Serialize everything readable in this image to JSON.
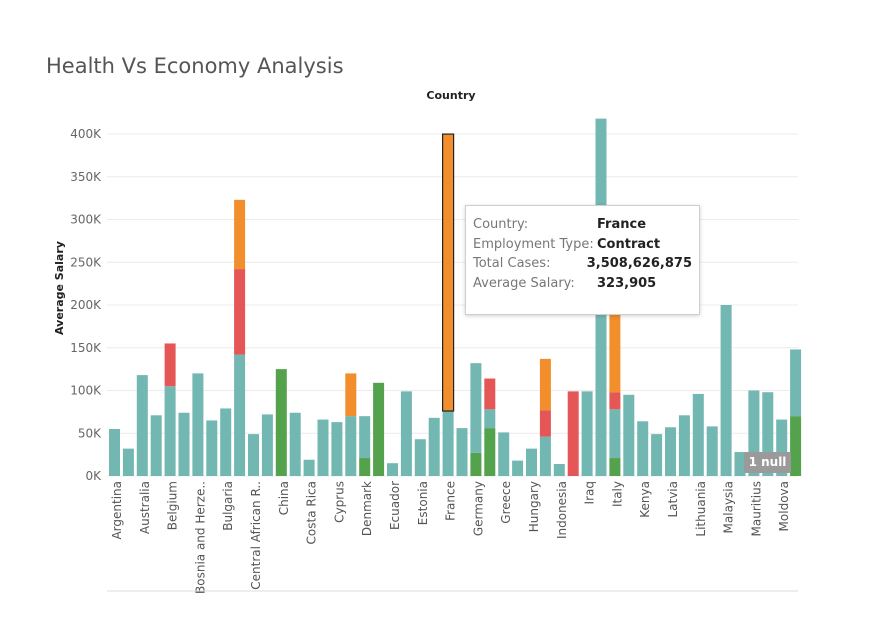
{
  "title": "Health Vs Economy Analysis",
  "colors": {
    "Full-time": "#72b7b2",
    "Part-time": "#e45756",
    "Contract": "#f28e2b",
    "Freelance": "#54a24b",
    "highlight_stroke": "#222222",
    "grid": "#ececec",
    "axis": "#dddddd"
  },
  "tooltip": {
    "rows": [
      {
        "label": "Country:",
        "value": "France"
      },
      {
        "label": "Employment Type:",
        "value": "Contract"
      },
      {
        "label": "Total Cases:",
        "value": "3,508,626,875"
      },
      {
        "label": "Average Salary:",
        "value": "323,905"
      }
    ]
  },
  "null_indicator": "1 null",
  "chart_data": {
    "type": "bar",
    "stacked": true,
    "xlabel": "Country",
    "xlabel_position": "top",
    "ylabel": "Average Salary",
    "ylim": [
      0,
      420000
    ],
    "yticks": [
      0,
      50000,
      100000,
      150000,
      200000,
      250000,
      300000,
      350000,
      400000
    ],
    "ytick_labels": [
      "0K",
      "50K",
      "100K",
      "150K",
      "200K",
      "250K",
      "300K",
      "350K",
      "400K"
    ],
    "grid": true,
    "highlighted": {
      "country": "France",
      "segment": "Contract"
    },
    "categories": [
      "Argentina",
      "Australia",
      "Belgium",
      "Bosnia and Herze..",
      "Bulgaria",
      "Central African R..",
      "China",
      "Costa Rica",
      "Cyprus",
      "Denmark",
      "Ecuador",
      "Estonia",
      "France",
      "Germany",
      "Greece",
      "Hungary",
      "Indonesia",
      "Iraq",
      "Italy",
      "Kenya",
      "Latvia",
      "Lithuania",
      "Malaysia",
      "Mauritius",
      "Moldova"
    ],
    "groups": [
      {
        "country": "Argentina",
        "bars": [
          {
            "Full-time": 55000
          },
          {
            "Full-time": 32000
          }
        ]
      },
      {
        "country": "Australia",
        "bars": [
          {
            "Full-time": 118000
          },
          {
            "Full-time": 71000
          }
        ]
      },
      {
        "country": "Belgium",
        "bars": [
          {
            "Full-time": 105000,
            "Part-time": 50000
          },
          {
            "Full-time": 74000
          }
        ]
      },
      {
        "country": "Bosnia and Herze..",
        "bars": [
          {
            "Full-time": 120000
          },
          {
            "Full-time": 65000
          }
        ]
      },
      {
        "country": "Bulgaria",
        "bars": [
          {
            "Full-time": 79000
          },
          {
            "Full-time": 142000,
            "Part-time": 100000,
            "Contract": 81000
          }
        ]
      },
      {
        "country": "Central African R..",
        "bars": [
          {
            "Full-time": 49000
          },
          {
            "Full-time": 72000
          }
        ]
      },
      {
        "country": "China",
        "bars": [
          {
            "Freelance": 125000
          },
          {
            "Full-time": 74000
          }
        ]
      },
      {
        "country": "Costa Rica",
        "bars": [
          {
            "Full-time": 19000
          },
          {
            "Full-time": 66000
          }
        ]
      },
      {
        "country": "Cyprus",
        "bars": [
          {
            "Full-time": 63000
          },
          {
            "Full-time": 70000,
            "Contract": 50000
          }
        ]
      },
      {
        "country": "Denmark",
        "bars": [
          {
            "Freelance": 21000,
            "Full-time": 49000
          },
          {
            "Freelance": 109000
          }
        ]
      },
      {
        "country": "Ecuador",
        "bars": [
          {
            "Full-time": 15000
          },
          {
            "Full-time": 99000
          }
        ]
      },
      {
        "country": "Estonia",
        "bars": [
          {
            "Full-time": 43000
          },
          {
            "Full-time": 68000
          }
        ]
      },
      {
        "country": "France",
        "bars": [
          {
            "Full-time": 76000,
            "Contract": 323905
          },
          {
            "Full-time": 56000
          }
        ]
      },
      {
        "country": "Germany",
        "bars": [
          {
            "Freelance": 27000,
            "Full-time": 105000
          },
          {
            "Freelance": 56000,
            "Full-time": 22000,
            "Part-time": 36000
          }
        ]
      },
      {
        "country": "Greece",
        "bars": [
          {
            "Full-time": 51000
          },
          {
            "Full-time": 18000
          }
        ]
      },
      {
        "country": "Hungary",
        "bars": [
          {
            "Full-time": 32000
          },
          {
            "Full-time": 46000,
            "Part-time": 31000,
            "Contract": 60000
          }
        ]
      },
      {
        "country": "Indonesia",
        "bars": [
          {
            "Full-time": 14000
          },
          {
            "Part-time": 99000
          }
        ]
      },
      {
        "country": "Iraq",
        "bars": [
          {
            "Full-time": 99000
          },
          {
            "Full-time": 418000
          }
        ]
      },
      {
        "country": "Italy",
        "bars": [
          {
            "Freelance": 21000,
            "Full-time": 57000,
            "Part-time": 20000,
            "Contract": 93000
          },
          {
            "Full-time": 95000
          }
        ]
      },
      {
        "country": "Kenya",
        "bars": [
          {
            "Full-time": 64000
          },
          {
            "Full-time": 49000
          }
        ]
      },
      {
        "country": "Latvia",
        "bars": [
          {
            "Full-time": 57000
          },
          {
            "Full-time": 71000
          }
        ]
      },
      {
        "country": "Lithuania",
        "bars": [
          {
            "Full-time": 96000
          },
          {
            "Full-time": 58000
          }
        ]
      },
      {
        "country": "Malaysia",
        "bars": [
          {
            "Full-time": 200000
          },
          {
            "Full-time": 28000
          }
        ]
      },
      {
        "country": "Mauritius",
        "bars": [
          {
            "Full-time": 100000
          },
          {
            "Full-time": 98000
          }
        ]
      },
      {
        "country": "Moldova",
        "bars": [
          {
            "Full-time": 66000
          },
          {
            "Freelance": 70000,
            "Full-time": 78000
          }
        ]
      }
    ]
  }
}
